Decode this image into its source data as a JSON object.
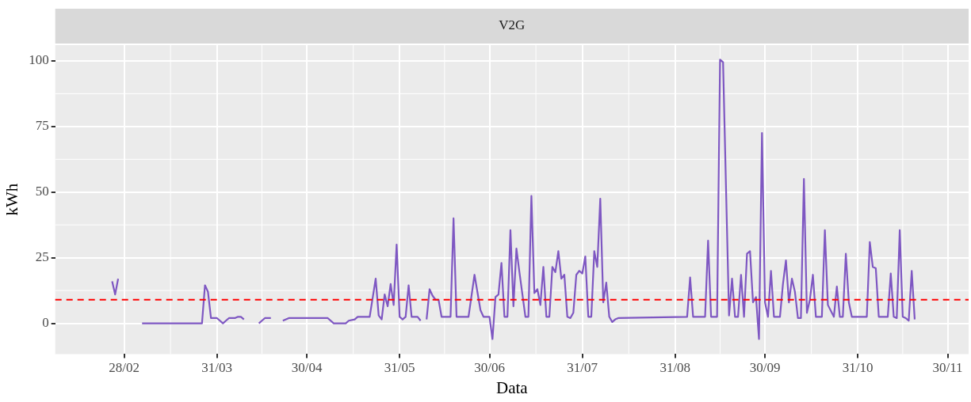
{
  "chart_data": {
    "type": "line",
    "title": "V2G",
    "xlabel": "Data",
    "ylabel": "kWh",
    "xlim": [
      "--02-05",
      "--12-07"
    ],
    "xticks": [
      {
        "value": "--02-28",
        "label": "28/02"
      },
      {
        "value": "--03-31",
        "label": "31/03"
      },
      {
        "value": "--04-30",
        "label": "30/04"
      },
      {
        "value": "--05-31",
        "label": "31/05"
      },
      {
        "value": "--06-30",
        "label": "30/06"
      },
      {
        "value": "--07-31",
        "label": "31/07"
      },
      {
        "value": "--08-31",
        "label": "31/08"
      },
      {
        "value": "--09-30",
        "label": "30/09"
      },
      {
        "value": "--10-31",
        "label": "31/10"
      },
      {
        "value": "--11-30",
        "label": "30/11"
      }
    ],
    "ylim": [
      -11.7,
      106
    ],
    "yticks": [
      0,
      25,
      50,
      75,
      100
    ],
    "grid": true,
    "legend": false,
    "marker": "none",
    "line_style": "solid",
    "ref_lines": [
      {
        "axis": "y",
        "value": 9,
        "color": "#ff0000",
        "line_style": "dashed"
      }
    ],
    "series": [
      {
        "color": "#7e57c2",
        "x": [
          "--02-24",
          "--02-25",
          "--02-26",
          "--03-01",
          "--03-06",
          "--03-26",
          "--03-27",
          "--03-28",
          "--03-29",
          "--03-30",
          "--03-31",
          "--04-01",
          "--04-02",
          "--04-03",
          "--04-04",
          "--04-05",
          "--04-06",
          "--04-07",
          "--04-08",
          "--04-09",
          "--04-11",
          "--04-14",
          "--04-15",
          "--04-16",
          "--04-17",
          "--04-18",
          "--04-20",
          "--04-22",
          "--04-24",
          "--05-07",
          "--05-09",
          "--05-13",
          "--05-14",
          "--05-16",
          "--05-17",
          "--05-21",
          "--05-23",
          "--05-24",
          "--05-25",
          "--05-26",
          "--05-27",
          "--05-28",
          "--05-29",
          "--05-30",
          "--05-31",
          "--06-01",
          "--06-02",
          "--06-03",
          "--06-04",
          "--06-06",
          "--06-07",
          "--06-08",
          "--06-09",
          "--06-10",
          "--06-11",
          "--06-12",
          "--06-13",
          "--06-14",
          "--06-17",
          "--06-18",
          "--06-19",
          "--06-23",
          "--06-25",
          "--06-27",
          "--06-28",
          "--06-30",
          "--07-01",
          "--07-02",
          "--07-03",
          "--07-04",
          "--07-05",
          "--07-06",
          "--07-07",
          "--07-08",
          "--07-09",
          "--07-10",
          "--07-11",
          "--07-12",
          "--07-13",
          "--07-14",
          "--07-15",
          "--07-16",
          "--07-17",
          "--07-18",
          "--07-19",
          "--07-20",
          "--07-21",
          "--07-22",
          "--07-23",
          "--07-24",
          "--07-25",
          "--07-26",
          "--07-27",
          "--07-28",
          "--07-29",
          "--07-30",
          "--07-31",
          "--08-01",
          "--08-02",
          "--08-03",
          "--08-04",
          "--08-05",
          "--08-06",
          "--08-07",
          "--08-08",
          "--08-09",
          "--08-10",
          "--08-11",
          "--08-12",
          "--09-04",
          "--09-05",
          "--09-06",
          "--09-10",
          "--09-11",
          "--09-12",
          "--09-14",
          "--09-15",
          "--09-16",
          "--09-17",
          "--09-18",
          "--09-19",
          "--09-20",
          "--09-21",
          "--09-22",
          "--09-23",
          "--09-24",
          "--09-25",
          "--09-26",
          "--09-27",
          "--09-28",
          "--09-29",
          "--09-30",
          "--10-01",
          "--10-02",
          "--10-03",
          "--10-05",
          "--10-06",
          "--10-07",
          "--10-08",
          "--10-09",
          "--10-10",
          "--10-11",
          "--10-12",
          "--10-13",
          "--10-14",
          "--10-15",
          "--10-16",
          "--10-17",
          "--10-19",
          "--10-20",
          "--10-21",
          "--10-23",
          "--10-24",
          "--10-25",
          "--10-26",
          "--10-27",
          "--10-28",
          "--10-29",
          "--11-03",
          "--11-04",
          "--11-05",
          "--11-06",
          "--11-07",
          "--11-10",
          "--11-11",
          "--11-12",
          "--11-13",
          "--11-14",
          "--11-15",
          "--11-16",
          "--11-17",
          "--11-18",
          "--11-19"
        ],
        "values": [
          16,
          11,
          17,
          null,
          0,
          0,
          14.5,
          12,
          2,
          2,
          2,
          1,
          0,
          1,
          2,
          2,
          2,
          2.5,
          2.5,
          1.5,
          null,
          0,
          1,
          2,
          2,
          2,
          null,
          1,
          2,
          2,
          0,
          0,
          1,
          1.5,
          2.5,
          2.5,
          17,
          3,
          1.5,
          11,
          6.5,
          15,
          7,
          30,
          2.5,
          1.5,
          2.5,
          14.5,
          2.5,
          2.5,
          1,
          null,
          1.5,
          13,
          10.5,
          9,
          9,
          2.5,
          2.5,
          40,
          2.5,
          2.5,
          18.5,
          5,
          2.5,
          2.5,
          -6,
          10,
          11,
          23,
          2.5,
          2.5,
          35.5,
          6.5,
          28.5,
          19.5,
          11,
          2.5,
          2.5,
          48.5,
          11.5,
          13,
          7,
          21.5,
          2.5,
          2.5,
          21.5,
          19.5,
          27.5,
          17,
          18.5,
          2.5,
          2,
          4,
          18.5,
          20,
          19,
          25.5,
          2.5,
          2.5,
          27.5,
          21.5,
          47.5,
          8,
          15.5,
          2.5,
          0.5,
          1.5,
          2,
          2.5,
          17.5,
          2.5,
          2.5,
          31.5,
          2.5,
          2.5,
          100.5,
          99.5,
          51,
          3,
          17,
          2.5,
          2.5,
          18.5,
          2.5,
          26.5,
          27.5,
          8,
          10,
          -6,
          72.5,
          8,
          2.5,
          20,
          2.5,
          2.5,
          15,
          24,
          8,
          17,
          12,
          2,
          2,
          55,
          4,
          9,
          18.5,
          2.5,
          2.5,
          35.5,
          7,
          2.5,
          14,
          2.5,
          2.5,
          26.5,
          8,
          2.5,
          2.5,
          31,
          21.5,
          21,
          2.5,
          2.5,
          19,
          2.5,
          2,
          35.5,
          2.5,
          2,
          1,
          20,
          1.5
        ]
      }
    ]
  }
}
